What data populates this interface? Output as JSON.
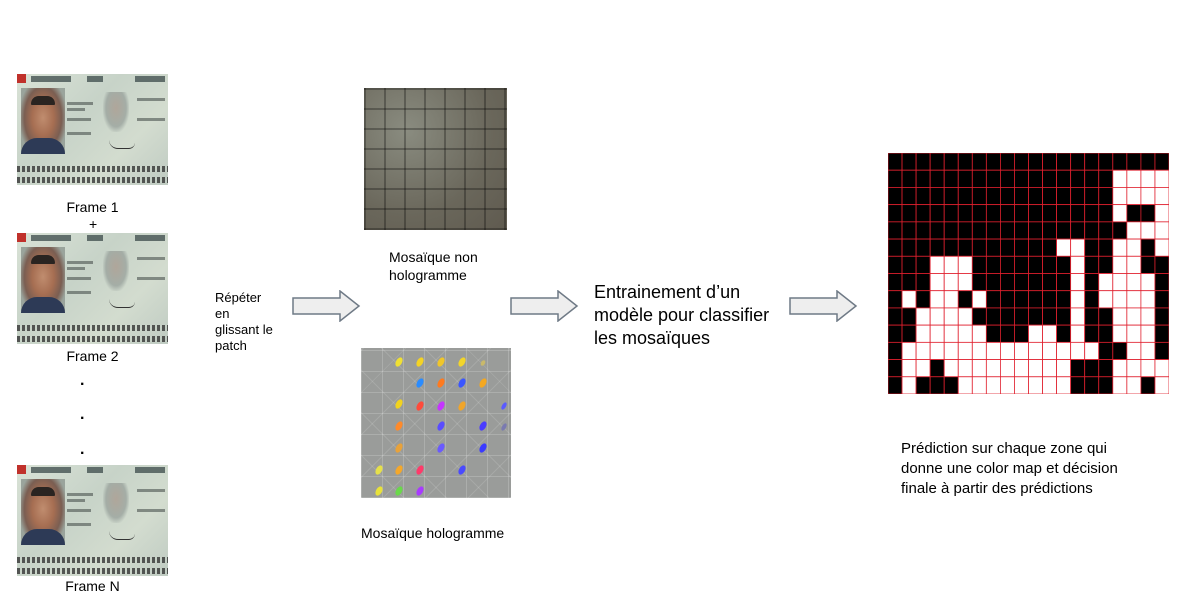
{
  "frames": [
    {
      "label": "Frame 1"
    },
    {
      "label": "Frame 2"
    },
    {
      "label": "Frame N"
    }
  ],
  "plus_sign": "+",
  "ellipsis_dots": [
    ".",
    ".",
    "."
  ],
  "step1_text": [
    "Répéter",
    "en",
    "glissant le",
    "patch"
  ],
  "mosaic_non_hologram": {
    "caption_lines": [
      "Mosaïque non",
      "hologramme"
    ]
  },
  "mosaic_hologram": {
    "caption": "Mosaïque hologramme"
  },
  "training_text": [
    "Entrainement d’un",
    "modèle pour classifier",
    "les mosaïques"
  ],
  "prediction_text": [
    "Prédiction sur chaque zone qui",
    "donne une color map et décision",
    "finale à partir des prédictions"
  ],
  "colors": {
    "grid_background": "#000000",
    "grid_lines": "#e0202e",
    "grid_positive": "#ffffff",
    "arrow_fill": "#eeeeee",
    "arrow_stroke": "#6f7a86"
  },
  "prediction_map": [
    "00000000000000000000",
    "00000000000000001111",
    "00000000000000001111",
    "00000000000000001001",
    "00000000000000000111",
    "00000000000011001101",
    "00011100000001001100",
    "00011100000001011110",
    "01011010000001011110",
    "00111100000001001110",
    "00111110001101001110",
    "01111111111111100110",
    "01101111111110001111",
    "01000111111110001101"
  ]
}
